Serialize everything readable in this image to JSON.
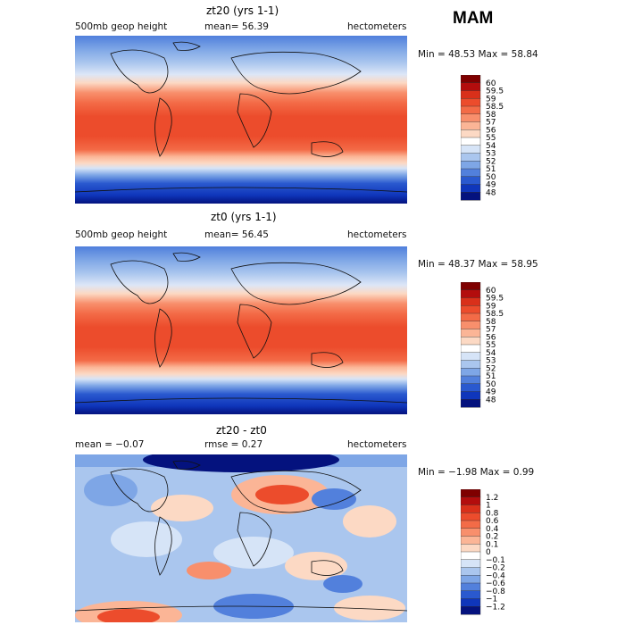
{
  "season": "MAM",
  "panels": [
    {
      "title": "zt20 (yrs 1-1)",
      "left_label": "500mb geop height",
      "mid_label": "mean=  56.39",
      "right_label": "hectometers",
      "min_max": "Min =  48.53 Max =  58.84",
      "colorbar": {
        "labels": [
          "60",
          "59.5",
          "59",
          "58.5",
          "58",
          "57",
          "56",
          "55",
          "54",
          "53",
          "52",
          "51",
          "50",
          "49",
          "48"
        ],
        "colors": [
          "#7f0000",
          "#b30d0d",
          "#d9301a",
          "#ec4c2c",
          "#f36b47",
          "#f88f6c",
          "#fbb596",
          "#fcd9c4",
          "#ffffff",
          "#d6e4f7",
          "#aac6ee",
          "#7ea6e6",
          "#5280dc",
          "#2a59cf",
          "#0f36bb",
          "#04127e"
        ]
      }
    },
    {
      "title": "zt0 (yrs 1-1)",
      "left_label": "500mb geop height",
      "mid_label": "mean=  56.45",
      "right_label": "hectometers",
      "min_max": "Min =  48.37 Max =  58.95",
      "colorbar": {
        "labels": [
          "60",
          "59.5",
          "59",
          "58.5",
          "58",
          "57",
          "56",
          "55",
          "54",
          "53",
          "52",
          "51",
          "50",
          "49",
          "48"
        ],
        "colors": [
          "#7f0000",
          "#b30d0d",
          "#d9301a",
          "#ec4c2c",
          "#f36b47",
          "#f88f6c",
          "#fbb596",
          "#fcd9c4",
          "#ffffff",
          "#d6e4f7",
          "#aac6ee",
          "#7ea6e6",
          "#5280dc",
          "#2a59cf",
          "#0f36bb",
          "#04127e"
        ]
      }
    },
    {
      "title": "zt20 - zt0",
      "left_label": "mean =  −0.07",
      "mid_label": "rmse =    0.27",
      "right_label": "hectometers",
      "min_max": "Min =  −1.98 Max =   0.99",
      "colorbar": {
        "labels": [
          "1.2",
          "1",
          "0.8",
          "0.6",
          "0.4",
          "0.2",
          "0.1",
          "0",
          "−0.1",
          "−0.2",
          "−0.4",
          "−0.6",
          "−0.8",
          "−1",
          "−1.2"
        ],
        "colors": [
          "#7f0000",
          "#b30d0d",
          "#d9301a",
          "#ec4c2c",
          "#f36b47",
          "#f88f6c",
          "#fbb596",
          "#fcd9c4",
          "#ffffff",
          "#d6e4f7",
          "#aac6ee",
          "#7ea6e6",
          "#5280dc",
          "#2a59cf",
          "#0f36bb",
          "#04127e"
        ]
      }
    }
  ]
}
